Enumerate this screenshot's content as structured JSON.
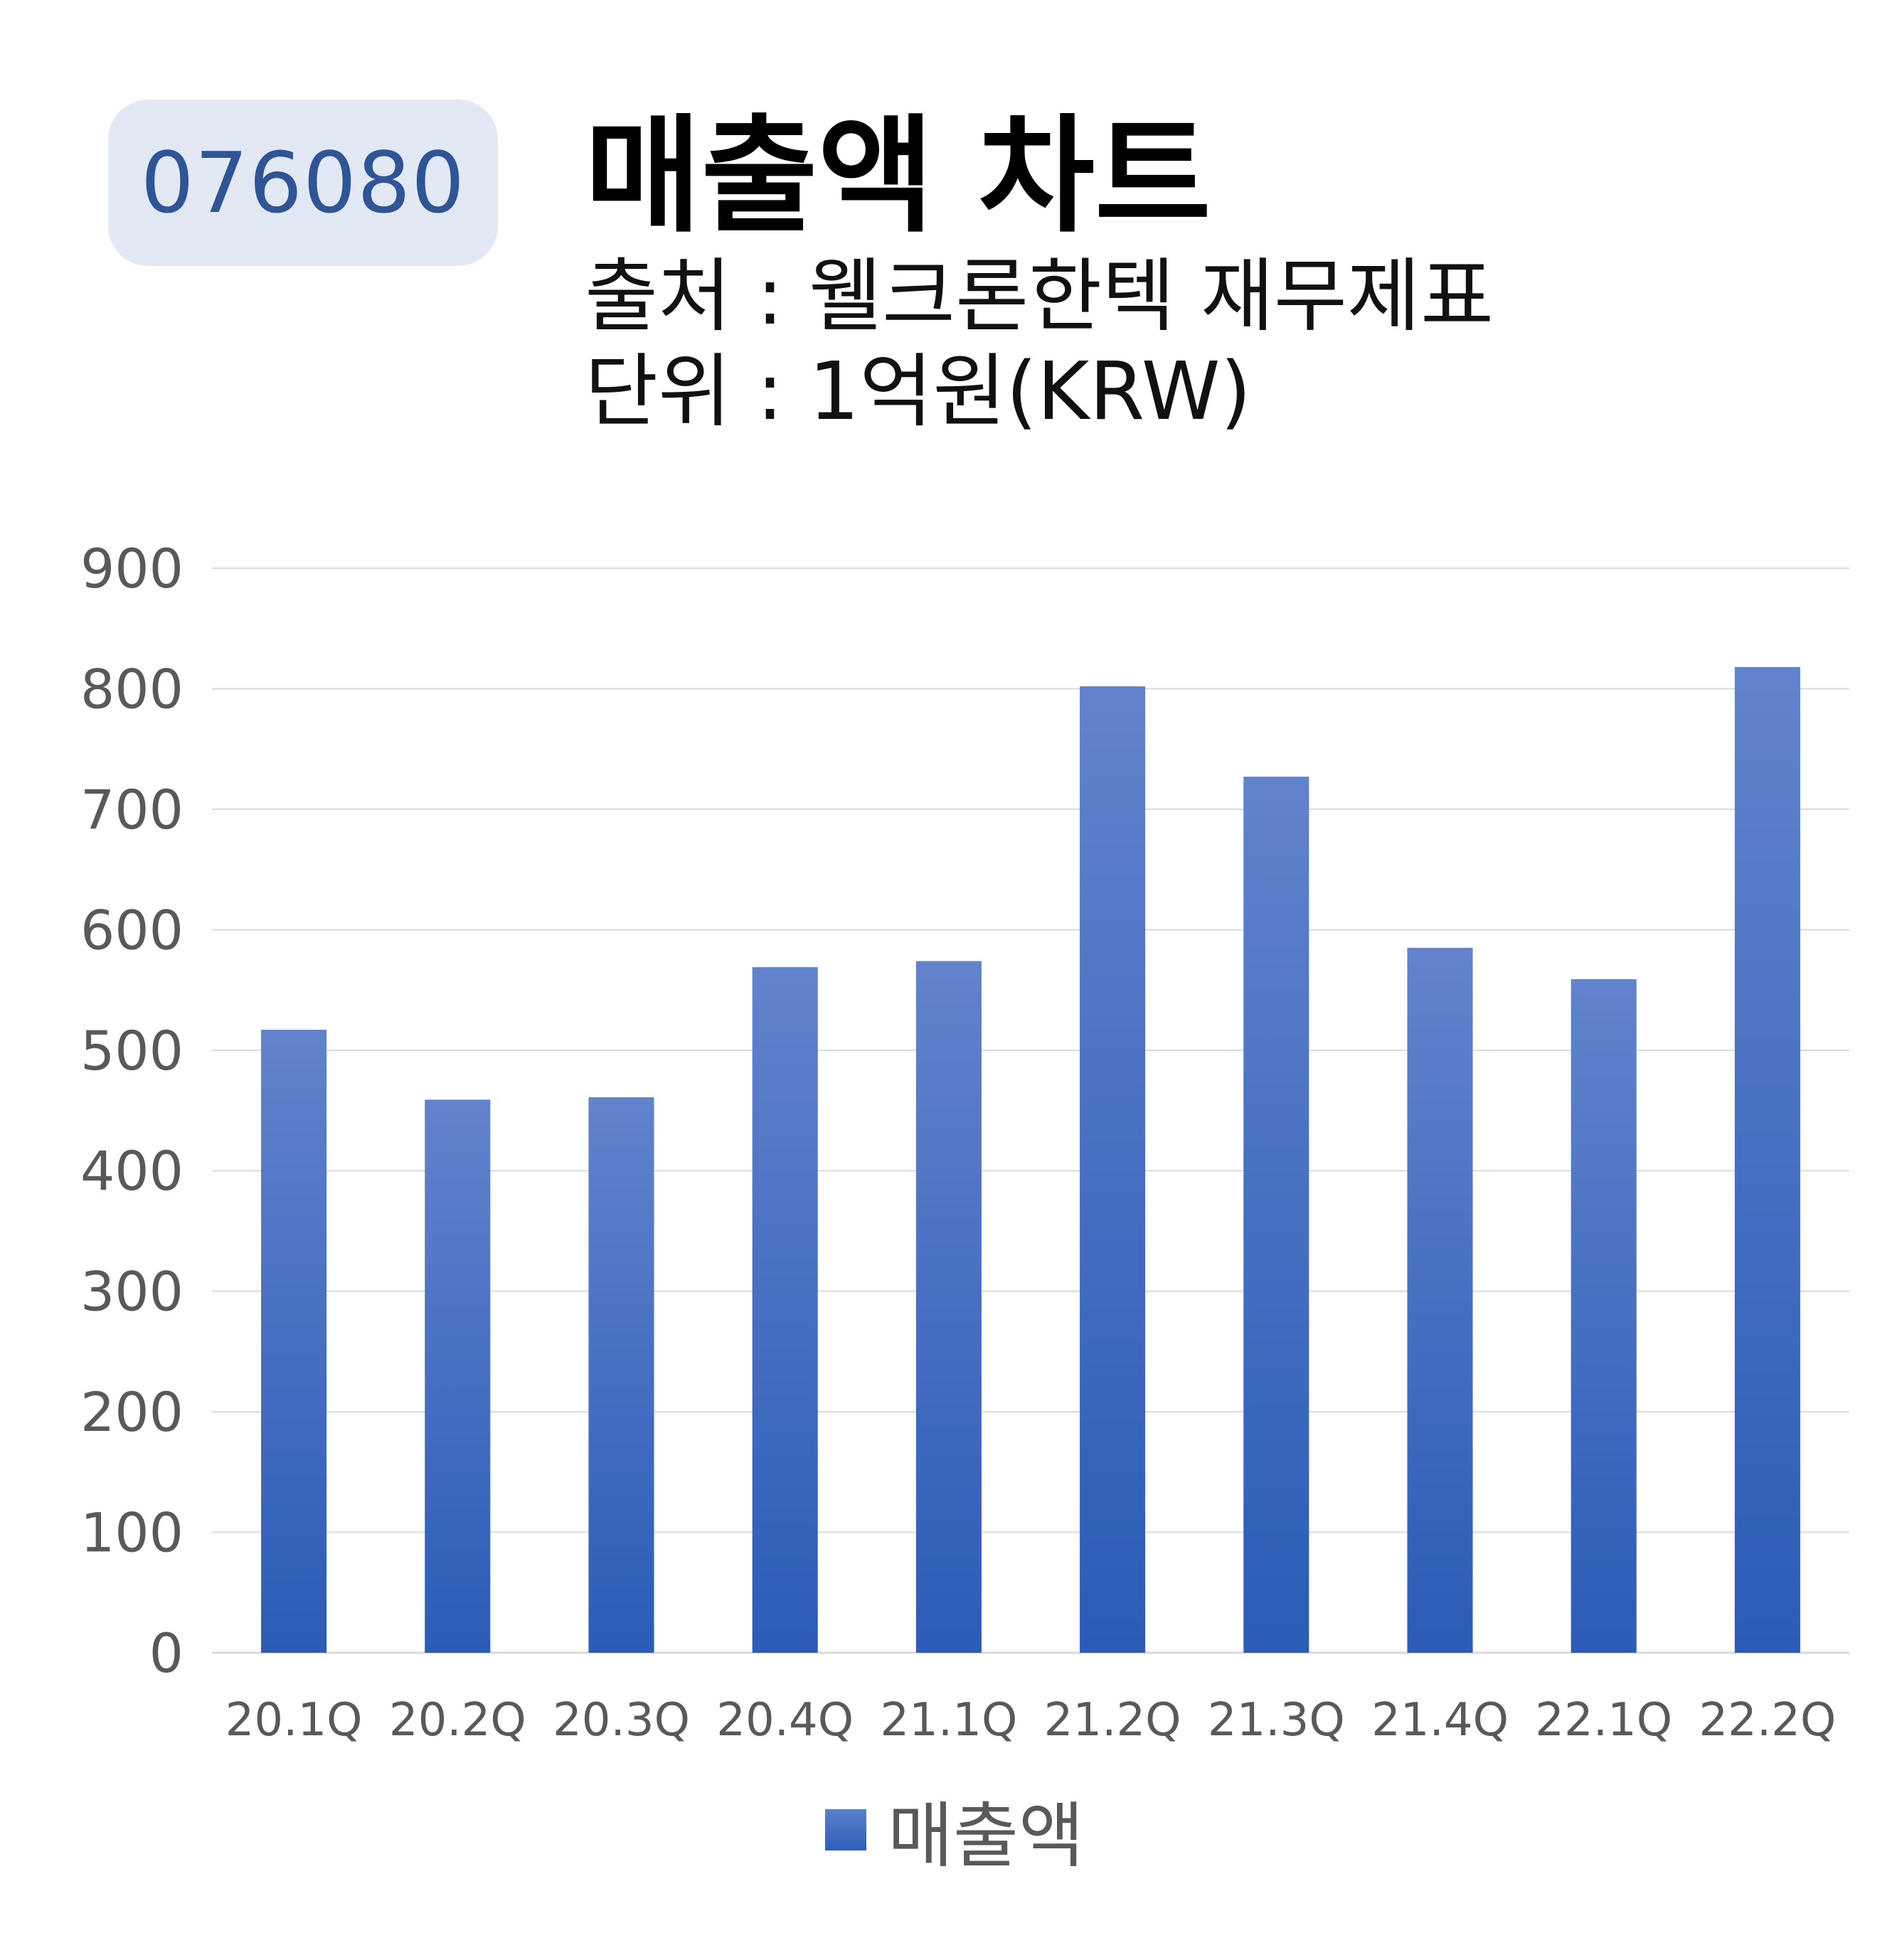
{
  "header": {
    "code": "076080",
    "title": "매출액 차트",
    "source": "출처 : 웰크론한텍 재무제표",
    "unit": "단위 : 1억원(KRW)"
  },
  "colors": {
    "bar_top": "#6283cc",
    "bar_bottom": "#2b5cb7",
    "grid": "#d9d9d9",
    "badge_bg": "#e3e9f4",
    "badge_text": "#2f5597",
    "axis_text": "#595959"
  },
  "chart_data": {
    "type": "bar",
    "categories": [
      "20.1Q",
      "20.2Q",
      "20.3Q",
      "20.4Q",
      "21.1Q",
      "21.2Q",
      "21.3Q",
      "21.4Q",
      "22.1Q",
      "22.2Q"
    ],
    "series": [
      {
        "name": "매출액",
        "values": [
          517,
          459,
          461,
          569,
          574,
          802,
          727,
          585,
          559,
          818
        ]
      }
    ],
    "ylim": [
      0,
      900
    ],
    "yticks": [
      "0",
      "100",
      "200",
      "300",
      "400",
      "500",
      "600",
      "700",
      "800",
      "900"
    ],
    "grid": true,
    "legend": "bottom"
  }
}
